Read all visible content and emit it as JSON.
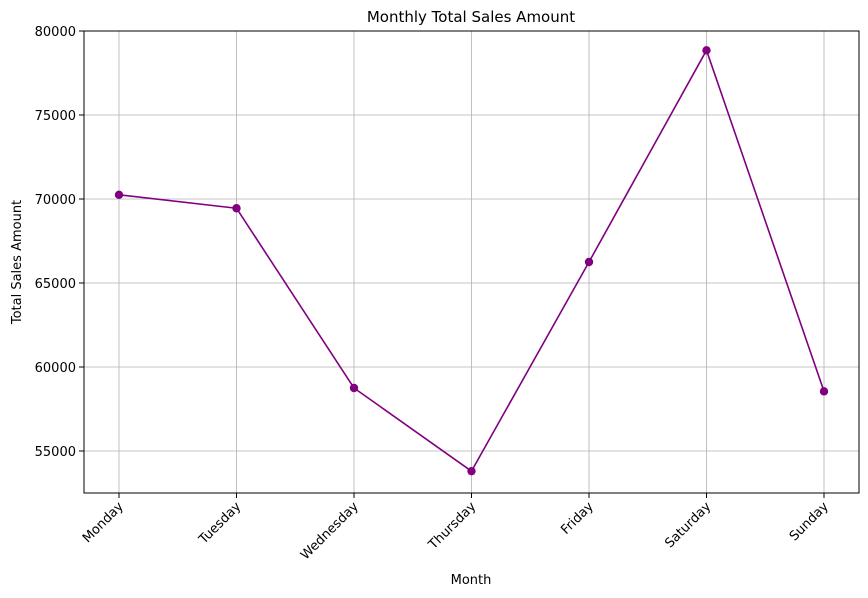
{
  "chart_data": {
    "type": "line",
    "title": "Monthly Total Sales Amount",
    "xlabel": "Month",
    "ylabel": "Total Sales Amount",
    "categories": [
      "Monday",
      "Tuesday",
      "Wednesday",
      "Thursday",
      "Friday",
      "Saturday",
      "Sunday"
    ],
    "series": [
      {
        "values": [
          70250,
          69450,
          58750,
          53800,
          66250,
          78850,
          58550
        ],
        "color": "#800080",
        "marker": "circle"
      }
    ],
    "ylim": [
      52500,
      80000
    ],
    "yticks": [
      55000,
      60000,
      65000,
      70000,
      75000,
      80000
    ],
    "ytick_labels": [
      "55000",
      "60000",
      "65000",
      "70000",
      "75000",
      "80000"
    ],
    "grid": true,
    "xtick_rotation": 45
  }
}
